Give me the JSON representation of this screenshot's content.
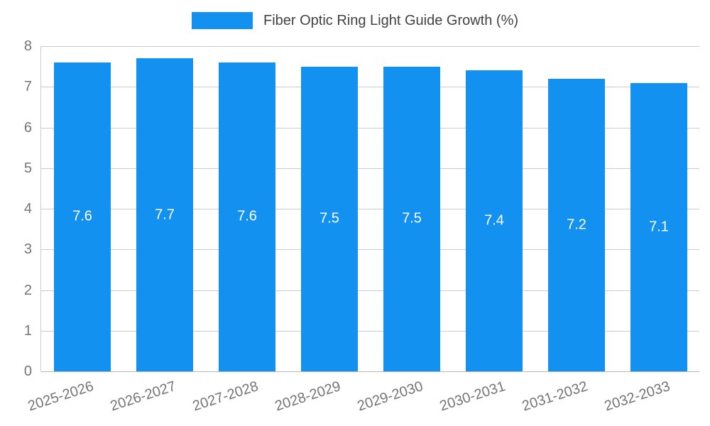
{
  "legend": {
    "label": "Fiber Optic Ring Light Guide Growth (%)"
  },
  "chart_data": {
    "type": "bar",
    "title": "Fiber Optic Ring Light Guide Growth (%)",
    "categories": [
      "2025-2026",
      "2026-2027",
      "2027-2028",
      "2028-2029",
      "2029-2030",
      "2030-2031",
      "2031-2032",
      "2032-2033"
    ],
    "values": [
      7.6,
      7.7,
      7.6,
      7.5,
      7.5,
      7.4,
      7.2,
      7.1
    ],
    "xlabel": "",
    "ylabel": "",
    "ylim": [
      0,
      8
    ],
    "yticks": [
      0,
      1,
      2,
      3,
      4,
      5,
      6,
      7,
      8
    ],
    "grid": true,
    "legend_position": "top-center",
    "data_label_position": "inside-center"
  },
  "colors": {
    "bar": "#1291f1",
    "grid": "#cccccc",
    "axis_text": "#757575",
    "title_text": "#424242",
    "data_label": "#ffffff",
    "background": "#ffffff"
  }
}
